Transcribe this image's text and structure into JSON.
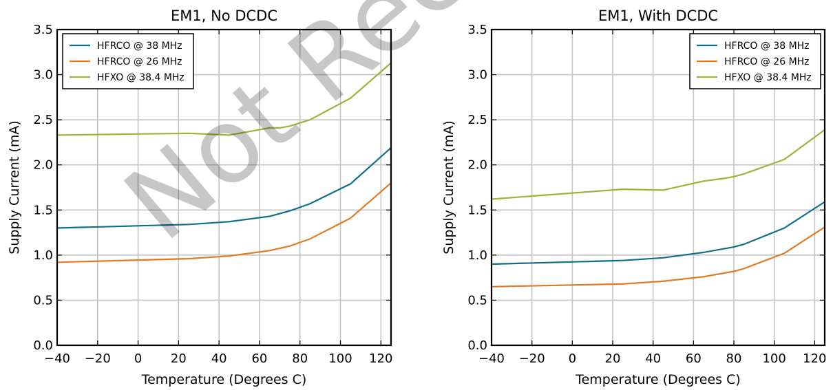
{
  "watermark": "Not Recommended for New Designs",
  "chart_data": [
    {
      "type": "line",
      "title": "EM1, No DCDC",
      "xlabel": "Temperature (Degrees C)",
      "ylabel": "Supply Current (mA)",
      "xlim": [
        -40,
        125
      ],
      "ylim": [
        0.0,
        3.5
      ],
      "xticks": [
        -40,
        -20,
        0,
        20,
        40,
        60,
        80,
        100,
        120
      ],
      "yticks": [
        "0.0",
        "0.5",
        "1.0",
        "1.5",
        "2.0",
        "2.5",
        "3.0",
        "3.5"
      ],
      "grid": true,
      "legend_position": "top-left",
      "series": [
        {
          "name": "HFRCO @ 38 MHz",
          "color": "#0e6e8c",
          "x": [
            -40,
            25,
            45,
            65,
            75,
            85,
            105,
            125
          ],
          "y": [
            1.3,
            1.34,
            1.37,
            1.43,
            1.49,
            1.57,
            1.79,
            2.19
          ]
        },
        {
          "name": "HFRCO @ 26 MHz",
          "color": "#e07b24",
          "x": [
            -40,
            25,
            45,
            65,
            75,
            85,
            105,
            125
          ],
          "y": [
            0.92,
            0.96,
            0.99,
            1.05,
            1.1,
            1.18,
            1.41,
            1.8
          ]
        },
        {
          "name": "HFXO @ 38.4 MHz",
          "color": "#9bb53a",
          "x": [
            -40,
            25,
            45,
            65,
            70,
            75,
            85,
            105,
            125
          ],
          "y": [
            2.33,
            2.35,
            2.33,
            2.41,
            2.41,
            2.43,
            2.5,
            2.74,
            3.13
          ]
        }
      ]
    },
    {
      "type": "line",
      "title": "EM1, With DCDC",
      "xlabel": "Temperature (Degrees C)",
      "ylabel": "Supply Current (mA)",
      "xlim": [
        -40,
        125
      ],
      "ylim": [
        0.0,
        3.5
      ],
      "xticks": [
        -40,
        -20,
        0,
        20,
        40,
        60,
        80,
        100,
        120
      ],
      "yticks": [
        "0.0",
        "0.5",
        "1.0",
        "1.5",
        "2.0",
        "2.5",
        "3.0",
        "3.5"
      ],
      "grid": true,
      "legend_position": "top-right",
      "series": [
        {
          "name": "HFRCO @ 38 MHz",
          "color": "#0e6e8c",
          "x": [
            -40,
            25,
            45,
            65,
            80,
            85,
            105,
            125
          ],
          "y": [
            0.9,
            0.94,
            0.97,
            1.03,
            1.09,
            1.12,
            1.3,
            1.59
          ]
        },
        {
          "name": "HFRCO @ 26 MHz",
          "color": "#e07b24",
          "x": [
            -40,
            25,
            45,
            65,
            80,
            85,
            105,
            125
          ],
          "y": [
            0.65,
            0.68,
            0.71,
            0.76,
            0.82,
            0.85,
            1.02,
            1.31
          ]
        },
        {
          "name": "HFXO @ 38.4 MHz",
          "color": "#9bb53a",
          "x": [
            -40,
            25,
            45,
            65,
            75,
            80,
            85,
            105,
            125
          ],
          "y": [
            1.62,
            1.73,
            1.72,
            1.82,
            1.85,
            1.87,
            1.9,
            2.06,
            2.39
          ]
        }
      ]
    }
  ]
}
